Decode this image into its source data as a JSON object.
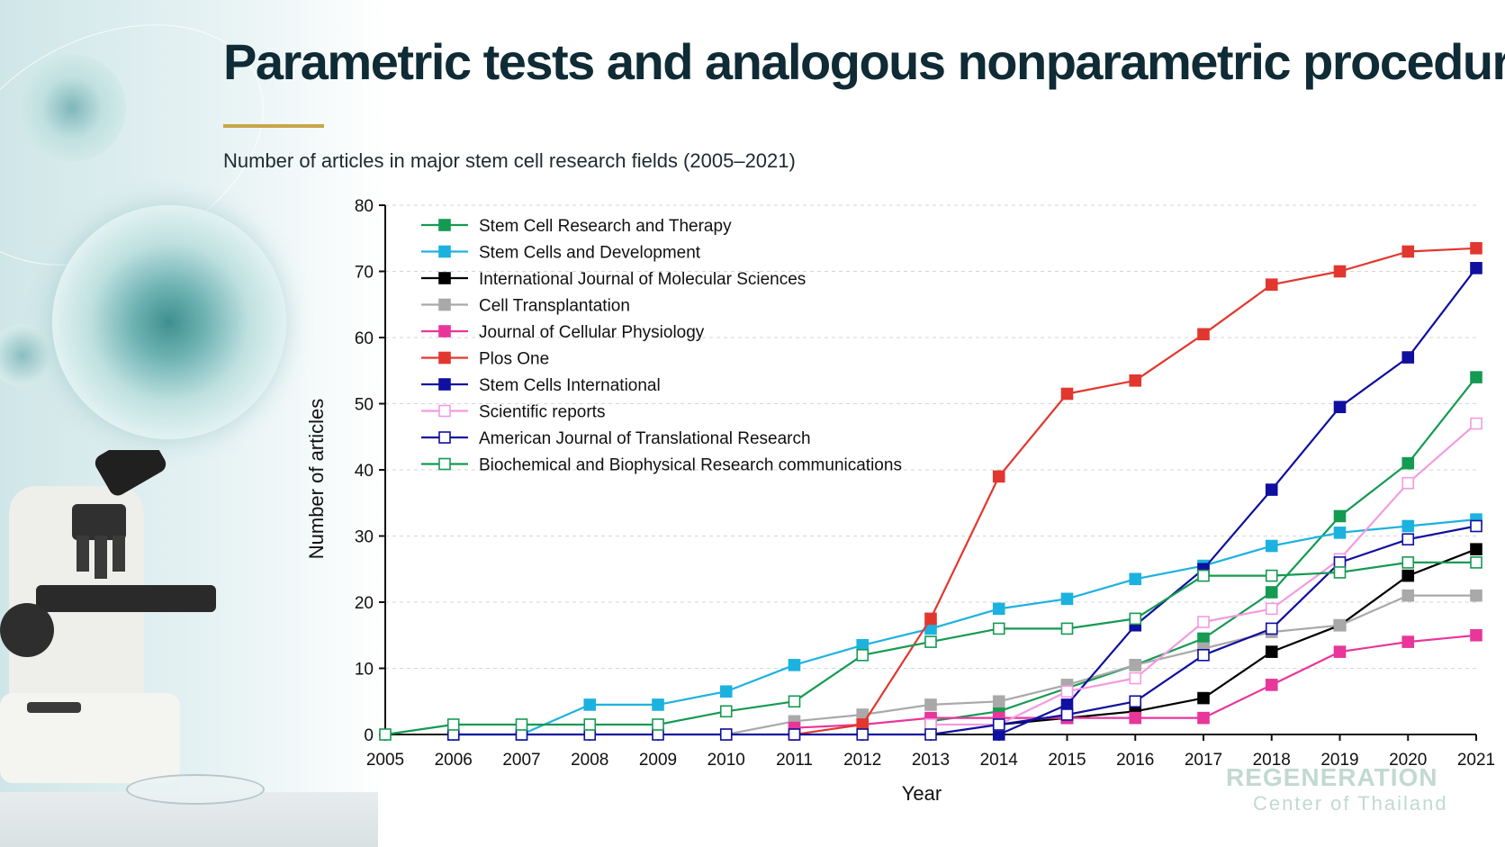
{
  "page": {
    "title": "Parametric tests and analogous nonparametric procedures",
    "subtitle": "Number of articles in major stem cell research fields (2005–2021)",
    "watermark_line1": "REGENERATION",
    "watermark_line2": "Center of Thailand",
    "accent_color": "#c9a54a"
  },
  "chart_data": {
    "type": "line",
    "xlabel": "Year",
    "ylabel": "Number of articles",
    "ylim": [
      0,
      80
    ],
    "yticks": [
      0,
      10,
      20,
      30,
      40,
      50,
      60,
      70,
      80
    ],
    "grid": "horizontal dashed",
    "legend_position": "top-left",
    "x": [
      2005,
      2006,
      2007,
      2008,
      2009,
      2010,
      2011,
      2012,
      2013,
      2014,
      2015,
      2016,
      2017,
      2018,
      2019,
      2020,
      2021
    ],
    "series": [
      {
        "name": "Stem Cell Research and Therapy",
        "color": "#159a52",
        "marker": "filled",
        "values": [
          null,
          null,
          null,
          null,
          null,
          null,
          null,
          null,
          2,
          3.5,
          7,
          10.5,
          14.5,
          21.5,
          33,
          41,
          54
        ]
      },
      {
        "name": "Stem Cells and Development",
        "color": "#1cb2df",
        "marker": "filled",
        "values": [
          null,
          0,
          0,
          4.5,
          4.5,
          6.5,
          10.5,
          13.5,
          16,
          19,
          20.5,
          23.5,
          25.5,
          28.5,
          30.5,
          31.5,
          32.5
        ]
      },
      {
        "name": "International Journal of Molecular Sciences",
        "color": "#000000",
        "marker": "filled",
        "values": [
          null,
          null,
          null,
          null,
          null,
          null,
          null,
          null,
          null,
          1.5,
          2.5,
          3.5,
          5.5,
          12.5,
          16.5,
          24,
          28
        ]
      },
      {
        "name": "Cell Transplantation",
        "color": "#a9a9a9",
        "marker": "filled",
        "values": [
          null,
          null,
          null,
          null,
          null,
          0,
          2,
          3,
          4.5,
          5,
          7.5,
          10.5,
          13,
          15.5,
          16.5,
          21,
          21
        ]
      },
      {
        "name": "Journal of Cellular Physiology",
        "color": "#e8369a",
        "marker": "filled",
        "values": [
          null,
          null,
          null,
          null,
          null,
          null,
          1,
          1.5,
          2.5,
          2.5,
          2.5,
          2.5,
          2.5,
          7.5,
          12.5,
          14,
          15
        ]
      },
      {
        "name": "Plos One",
        "color": "#e2372f",
        "marker": "filled",
        "values": [
          null,
          null,
          null,
          null,
          null,
          null,
          0,
          1.5,
          17.5,
          39,
          51.5,
          53.5,
          60.5,
          68,
          70,
          73,
          73.5
        ]
      },
      {
        "name": "Stem Cells International",
        "color": "#0f0fa0",
        "marker": "filled",
        "values": [
          null,
          null,
          null,
          null,
          null,
          null,
          null,
          null,
          null,
          0,
          4.5,
          16.5,
          25,
          37,
          49.5,
          57,
          70.5
        ]
      },
      {
        "name": "Scientific reports",
        "color": "#f39be0",
        "marker": "open",
        "values": [
          null,
          null,
          null,
          null,
          null,
          null,
          null,
          null,
          1.5,
          1.5,
          6.5,
          8.5,
          17,
          19,
          26.5,
          38,
          47
        ]
      },
      {
        "name": "American Journal of Translational Research",
        "color": "#0f0fa0",
        "marker": "open",
        "values": [
          null,
          0,
          0,
          0,
          0,
          0,
          0,
          0,
          0,
          1.5,
          3,
          5,
          12,
          16,
          26,
          29.5,
          31.5
        ]
      },
      {
        "name": "Biochemical and Biophysical Research communications",
        "color": "#159a52",
        "marker": "open",
        "values": [
          0,
          1.5,
          1.5,
          1.5,
          1.5,
          3.5,
          5,
          12,
          14,
          16,
          16,
          17.5,
          24,
          24,
          24.5,
          26,
          26
        ]
      }
    ]
  }
}
